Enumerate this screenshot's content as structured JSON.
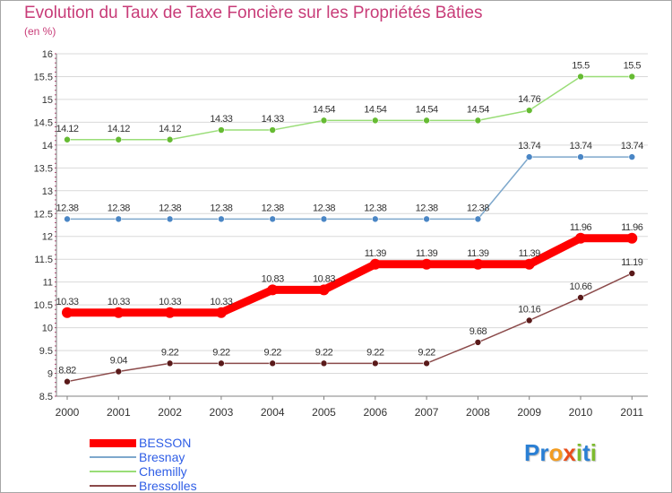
{
  "title": "Evolution du Taux de Taxe Foncière sur les Propriétés Bâties",
  "unit_label": "(en %)",
  "logo": {
    "text": "Proxiti",
    "letters": [
      {
        "ch": "P",
        "color": "#2a7fd4"
      },
      {
        "ch": "r",
        "color": "#2a7fd4"
      },
      {
        "ch": "o",
        "color": "#f39c1f"
      },
      {
        "ch": "x",
        "color": "#e94e1b"
      },
      {
        "ch": "i",
        "color": "#7dbb2e"
      },
      {
        "ch": "t",
        "color": "#2a7fd4"
      },
      {
        "ch": "i",
        "color": "#7dbb2e"
      }
    ]
  },
  "colors": {
    "title": "#c83c78",
    "axis": "#808080",
    "grid": "#d9d9d9",
    "label": "#333333"
  },
  "chart_data": {
    "type": "line",
    "title": "Evolution du Taux de Taxe Foncière sur les Propriétés Bâties",
    "ylabel": "(en %)",
    "xlabel": "",
    "x": [
      "2000",
      "2001",
      "2002",
      "2003",
      "2004",
      "2005",
      "2006",
      "2007",
      "2008",
      "2009",
      "2010",
      "2011"
    ],
    "ylim": [
      8.5,
      16
    ],
    "yticks": [
      "8.5",
      "9",
      "9.5",
      "10",
      "10.5",
      "11",
      "11.5",
      "12",
      "12.5",
      "13",
      "13.5",
      "14",
      "14.5",
      "15",
      "15.5",
      "16"
    ],
    "legend_position": "bottom-left",
    "series": [
      {
        "name": "BESSON",
        "color": "#ff0000",
        "marker": "#ff0000",
        "width": 9,
        "dot": 6,
        "values": [
          10.33,
          10.33,
          10.33,
          10.33,
          10.83,
          10.83,
          11.39,
          11.39,
          11.39,
          11.39,
          11.96,
          11.96
        ],
        "labels": [
          "10.33",
          "10.33",
          "10.33",
          "10.33",
          "10.83",
          "10.83",
          "11.39",
          "11.39",
          "11.39",
          "11.39",
          "11.96",
          "11.96"
        ]
      },
      {
        "name": "Bresnay",
        "color": "#7ea8cc",
        "marker": "#4a86c5",
        "width": 1.5,
        "dot": 3.5,
        "values": [
          12.38,
          12.38,
          12.38,
          12.38,
          12.38,
          12.38,
          12.38,
          12.38,
          12.38,
          13.74,
          13.74,
          13.74
        ],
        "labels": [
          "12.38",
          "12.38",
          "12.38",
          "12.38",
          "12.38",
          "12.38",
          "12.38",
          "12.38",
          "12.38",
          "13.74",
          "13.74",
          "13.74"
        ]
      },
      {
        "name": "Chemilly",
        "color": "#99dd77",
        "marker": "#66bb33",
        "width": 1.5,
        "dot": 3.5,
        "values": [
          14.12,
          14.12,
          14.12,
          14.33,
          14.33,
          14.54,
          14.54,
          14.54,
          14.54,
          14.76,
          15.5,
          15.5
        ],
        "labels": [
          "14.12",
          "14.12",
          "14.12",
          "14.33",
          "14.33",
          "14.54",
          "14.54",
          "14.54",
          "14.54",
          "14.76",
          "15.5",
          "15.5"
        ]
      },
      {
        "name": "Bressolles",
        "color": "#8b4a4a",
        "marker": "#5a1a1a",
        "width": 1.5,
        "dot": 3.5,
        "values": [
          8.82,
          9.04,
          9.22,
          9.22,
          9.22,
          9.22,
          9.22,
          9.22,
          9.68,
          10.16,
          10.66,
          11.19
        ],
        "labels": [
          "8.82",
          "9.04",
          "9.22",
          "9.22",
          "9.22",
          "9.22",
          "9.22",
          "9.22",
          "9.68",
          "10.16",
          "10.66",
          "11.19"
        ]
      }
    ]
  }
}
